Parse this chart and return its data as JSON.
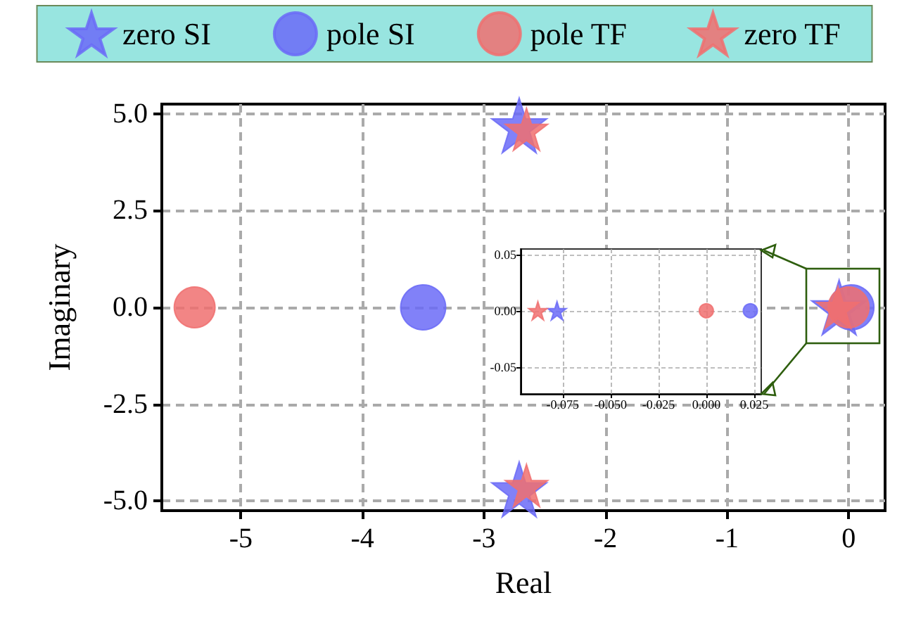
{
  "chart_data": [
    {
      "type": "scatter",
      "xlabel": "Real",
      "ylabel": "Imaginary",
      "xlim": [
        -5.65,
        0.3
      ],
      "ylim": [
        -5.25,
        5.25
      ],
      "xticks": [
        -5,
        -4,
        -3,
        -2,
        -1,
        0
      ],
      "yticks": [
        {
          "value": -5,
          "label": "-5.0"
        },
        {
          "value": -2.5,
          "label": "-2.5"
        },
        {
          "value": 0,
          "label": "0.0"
        },
        {
          "value": 2.5,
          "label": "2.5"
        },
        {
          "value": 5,
          "label": "5.0"
        }
      ],
      "grid": true,
      "legend": "top",
      "series": [
        {
          "name": "zero SI",
          "color": "#6b6bf7",
          "marker": "star",
          "x": [
            -2.71,
            -2.71,
            -0.078
          ],
          "values": [
            4.7,
            -4.7,
            0
          ]
        },
        {
          "name": "pole SI",
          "color": "#6b6bf7",
          "marker": "circle",
          "x": [
            -3.5,
            0.023
          ],
          "values": [
            0,
            0
          ]
        },
        {
          "name": "pole TF",
          "color": "#f07070",
          "marker": "circle",
          "x": [
            -5.38,
            0
          ],
          "values": [
            0,
            0
          ]
        },
        {
          "name": "zero TF",
          "color": "#f07070",
          "marker": "star",
          "x": [
            -2.65,
            -2.65,
            -0.088
          ],
          "values": [
            4.6,
            -4.6,
            0
          ]
        }
      ]
    },
    {
      "type": "scatter",
      "xlim": [
        -0.097,
        0.0287
      ],
      "ylim": [
        -0.074,
        0.055
      ],
      "xticks": [
        {
          "value": -0.075,
          "label": "-0.075"
        },
        {
          "value": -0.05,
          "label": "-0.050"
        },
        {
          "value": -0.025,
          "label": "-0.025"
        },
        {
          "value": 0,
          "label": "0.000"
        },
        {
          "value": 0.025,
          "label": "0.025"
        }
      ],
      "yticks": [
        {
          "value": -0.05,
          "label": "-0.05"
        },
        {
          "value": 0,
          "label": "0.00"
        },
        {
          "value": 0.05,
          "label": "0.05"
        }
      ],
      "grid": true,
      "series": [
        {
          "color": "#6b6bf7",
          "marker": "star",
          "x": [
            -0.078
          ],
          "values": [
            0
          ]
        },
        {
          "color": "#6b6bf7",
          "marker": "circle",
          "x": [
            0.023
          ],
          "values": [
            0
          ]
        },
        {
          "color": "#f07070",
          "marker": "circle",
          "x": [
            0
          ],
          "values": [
            0
          ]
        },
        {
          "color": "#f07070",
          "marker": "star",
          "x": [
            -0.088
          ],
          "values": [
            0
          ]
        }
      ]
    }
  ]
}
